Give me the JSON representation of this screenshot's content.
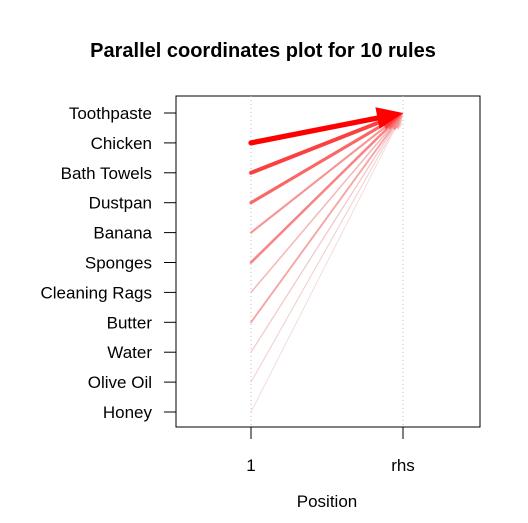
{
  "chart_data": {
    "type": "parallel-coordinates",
    "title": "Parallel coordinates plot for 10 rules",
    "xlabel": "Position",
    "x_ticks": [
      "1",
      "rhs"
    ],
    "y_items": [
      "Toothpaste",
      "Chicken",
      "Bath Towels",
      "Dustpan",
      "Banana",
      "Sponges",
      "Cleaning Rags",
      "Butter",
      "Water",
      "Olive Oil",
      "Honey"
    ],
    "rules": [
      {
        "lhs": "Chicken",
        "rhs": "Toothpaste",
        "strength": 1.0
      },
      {
        "lhs": "Bath Towels",
        "rhs": "Toothpaste",
        "strength": 0.72
      },
      {
        "lhs": "Dustpan",
        "rhs": "Toothpaste",
        "strength": 0.55
      },
      {
        "lhs": "Sponges",
        "rhs": "Toothpaste",
        "strength": 0.42
      },
      {
        "lhs": "Banana",
        "rhs": "Toothpaste",
        "strength": 0.35
      },
      {
        "lhs": "Butter",
        "rhs": "Toothpaste",
        "strength": 0.28
      },
      {
        "lhs": "Cleaning Rags",
        "rhs": "Toothpaste",
        "strength": 0.2
      },
      {
        "lhs": "Water",
        "rhs": "Toothpaste",
        "strength": 0.14
      },
      {
        "lhs": "Olive Oil",
        "rhs": "Toothpaste",
        "strength": 0.1
      },
      {
        "lhs": "Honey",
        "rhs": "Toothpaste",
        "strength": 0.06
      }
    ],
    "colors": {
      "strong": "#ff0000",
      "weak": "#f2e6e6",
      "grid": "#bfbfbf",
      "axis": "#000000"
    }
  }
}
